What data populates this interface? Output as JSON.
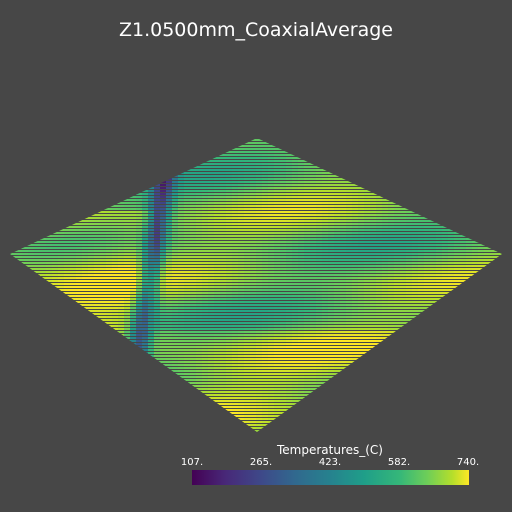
{
  "chart_data": {
    "type": "heatmap",
    "title": "Z1.0500mm_CoaxialAverage",
    "colorbar": {
      "title": "Temperatures_(C)",
      "min": 107,
      "max": 740,
      "ticks": [
        "107.",
        "265.",
        "423.",
        "582.",
        "740."
      ],
      "colormap": "viridis"
    },
    "grid": false,
    "legend_position": "bottom-right"
  }
}
